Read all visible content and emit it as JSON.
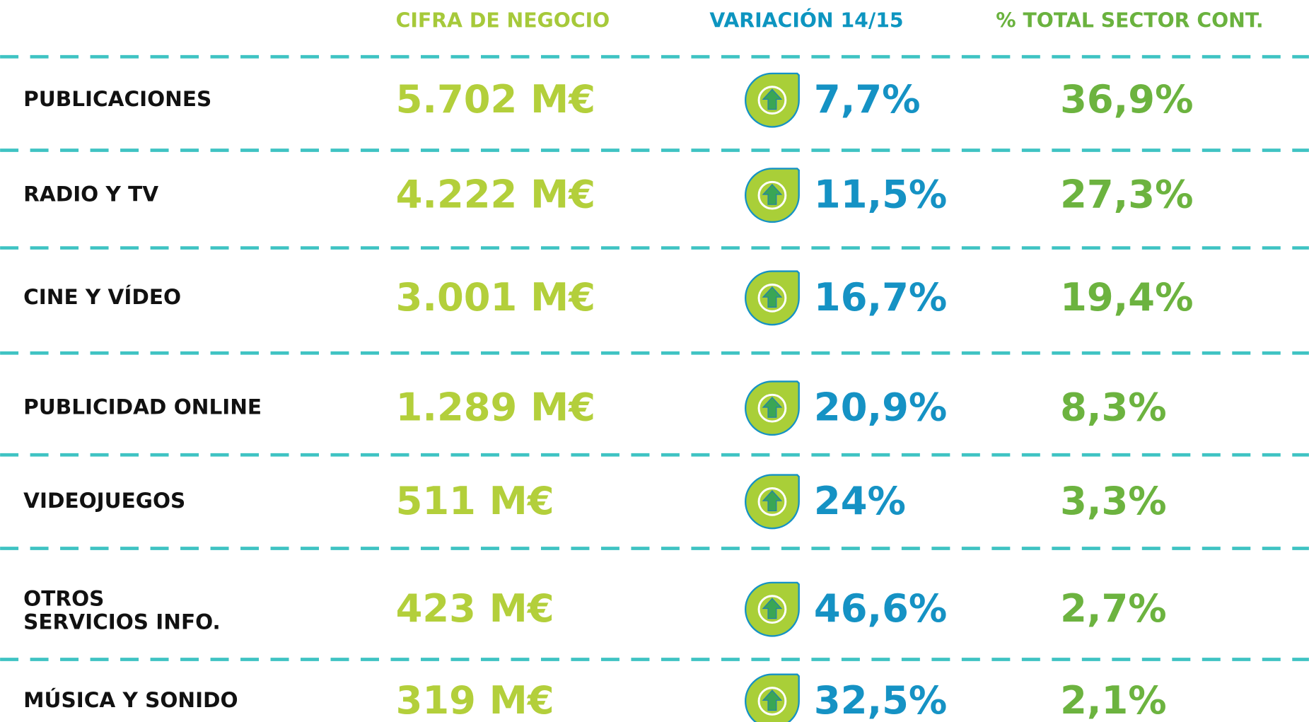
{
  "table": {
    "header": [
      "CIFRA DE NEGOCIO",
      "VARIACIÓN 14/15",
      "% TOTAL SECTOR CONT."
    ],
    "rows": [
      [
        "PUBLICACIONES",
        "5.702 M€",
        "7,7%",
        "36,9%"
      ],
      [
        "RADIO Y TV",
        "4.222 M€",
        "11,5%",
        "27,3%"
      ],
      [
        "CINE Y VÍDEO",
        "3.001 M€",
        "16,7%",
        "19,4%"
      ],
      [
        "PUBLICIDAD ONLINE",
        "1.289 M€",
        "20,9%",
        "8,3%"
      ],
      [
        "VIDEOJUEGOS",
        "511 M€",
        "24%",
        "3,3%"
      ],
      [
        "OTROS\nSERVICIOS INFO.",
        "423 M€",
        "46,6%",
        "2,7%"
      ],
      [
        "MÚSICA Y SONIDO",
        "319 M€",
        "32,5%",
        "2,1%"
      ]
    ]
  }
}
